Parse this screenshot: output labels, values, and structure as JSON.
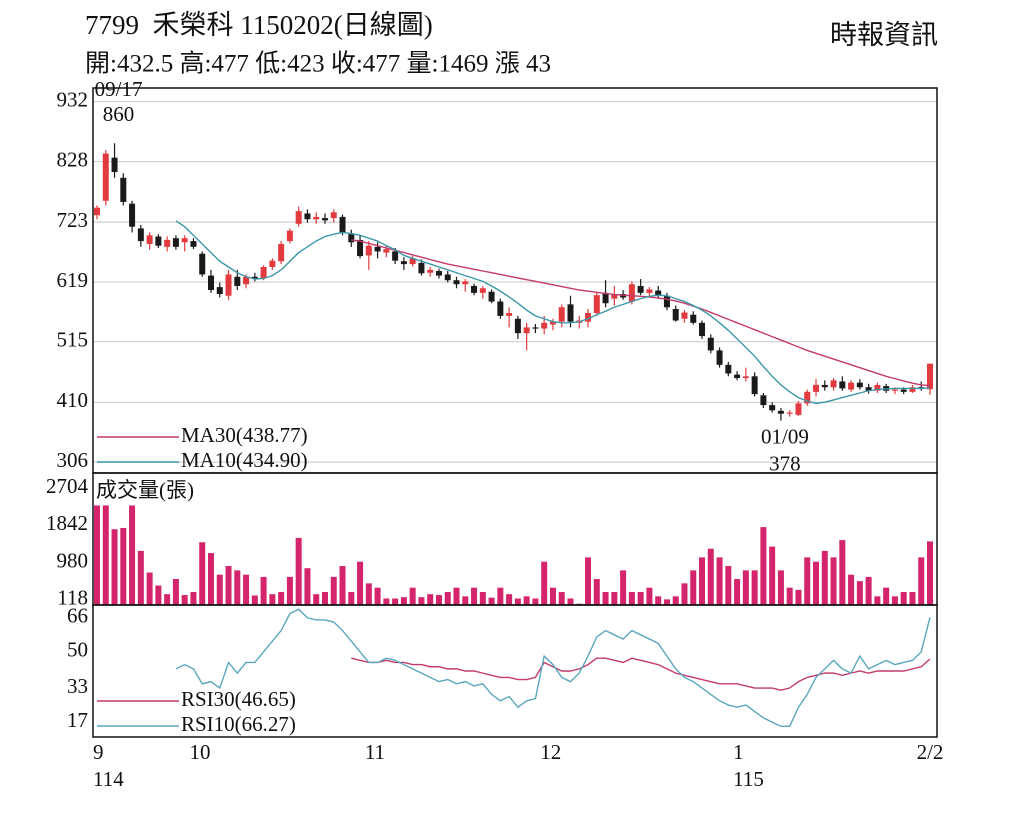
{
  "chart_data": [
    {
      "type": "candlestick",
      "title": "7799  禾榮科 1150202(日線圖)",
      "subtitle": "開:432.5 高:477 低:423 收:477 量:1469 漲 43",
      "source": "時報資訊",
      "open": [
        735,
        760,
        835,
        800,
        755,
        712,
        685,
        698,
        680,
        695,
        688,
        690,
        668,
        630,
        610,
        595,
        628,
        615,
        628,
        625,
        645,
        655,
        690,
        720,
        738,
        728,
        730,
        730,
        732,
        702,
        692,
        665,
        680,
        670,
        672,
        655,
        650,
        652,
        635,
        638,
        632,
        622,
        615,
        612,
        600,
        602,
        585,
        560,
        555,
        530,
        540,
        538,
        545,
        550,
        580,
        548,
        550,
        565,
        600,
        590,
        598,
        585,
        612,
        600,
        604,
        595,
        572,
        555,
        562,
        548,
        522,
        500,
        475,
        458,
        452,
        455,
        422,
        405,
        395,
        390,
        388,
        408,
        428,
        440,
        436,
        446,
        432,
        444,
        436,
        430,
        438,
        430,
        432,
        428,
        436,
        432.5
      ],
      "high": [
        752,
        848,
        860,
        808,
        760,
        718,
        705,
        702,
        698,
        700,
        700,
        695,
        672,
        640,
        618,
        640,
        640,
        632,
        635,
        648,
        660,
        690,
        712,
        750,
        745,
        740,
        738,
        745,
        736,
        710,
        700,
        690,
        688,
        682,
        678,
        662,
        664,
        658,
        645,
        642,
        638,
        628,
        624,
        616,
        612,
        606,
        590,
        575,
        560,
        548,
        546,
        560,
        555,
        580,
        595,
        560,
        572,
        600,
        622,
        612,
        605,
        620,
        624,
        610,
        612,
        600,
        578,
        570,
        568,
        552,
        528,
        505,
        480,
        464,
        470,
        462,
        426,
        410,
        400,
        396,
        412,
        432,
        450,
        448,
        452,
        455,
        448,
        450,
        442,
        444,
        442,
        436,
        436,
        440,
        446,
        477
      ],
      "low": [
        728,
        752,
        800,
        752,
        705,
        680,
        675,
        678,
        672,
        675,
        672,
        676,
        628,
        600,
        592,
        588,
        605,
        608,
        620,
        622,
        640,
        650,
        686,
        715,
        722,
        720,
        720,
        722,
        700,
        680,
        660,
        640,
        660,
        662,
        650,
        640,
        646,
        630,
        628,
        625,
        618,
        608,
        602,
        596,
        590,
        582,
        555,
        540,
        520,
        500,
        530,
        528,
        535,
        540,
        540,
        538,
        540,
        560,
        575,
        578,
        588,
        580,
        596,
        592,
        590,
        570,
        550,
        548,
        545,
        520,
        495,
        470,
        455,
        448,
        446,
        420,
        400,
        392,
        378,
        385,
        386,
        404,
        420,
        430,
        430,
        430,
        428,
        432,
        425,
        426,
        426,
        424,
        424,
        426,
        430,
        423
      ],
      "close": [
        748,
        842,
        810,
        758,
        715,
        690,
        700,
        682,
        692,
        680,
        695,
        680,
        632,
        605,
        598,
        632,
        612,
        628,
        624,
        645,
        656,
        685,
        708,
        742,
        728,
        732,
        726,
        740,
        705,
        688,
        664,
        682,
        672,
        676,
        656,
        650,
        660,
        634,
        640,
        630,
        622,
        615,
        620,
        600,
        608,
        585,
        560,
        565,
        530,
        540,
        538,
        548,
        550,
        575,
        550,
        552,
        565,
        596,
        582,
        598,
        592,
        615,
        600,
        606,
        595,
        575,
        552,
        566,
        548,
        525,
        500,
        475,
        460,
        452,
        455,
        424,
        405,
        396,
        390,
        392,
        408,
        428,
        440,
        436,
        448,
        434,
        444,
        436,
        430,
        440,
        430,
        432,
        428,
        436,
        434,
        477
      ],
      "up_color": "#e23a3f",
      "down_color": "#1a1a1a",
      "series": [
        {
          "name": "MA30(438.77)",
          "color": "#c43a6c",
          "values": [
            null,
            null,
            null,
            null,
            null,
            null,
            null,
            null,
            null,
            null,
            null,
            null,
            null,
            null,
            null,
            null,
            null,
            null,
            null,
            null,
            null,
            null,
            null,
            null,
            null,
            null,
            null,
            null,
            null,
            692,
            690,
            686,
            682,
            678,
            674,
            670,
            666,
            662,
            658,
            654,
            650,
            647,
            644,
            641,
            638,
            635,
            632,
            629,
            626,
            623,
            620,
            617,
            614,
            611,
            608,
            605,
            603,
            601,
            599,
            597,
            596,
            595,
            594,
            593,
            591,
            589,
            586,
            582,
            577,
            572,
            566,
            560,
            554,
            548,
            542,
            536,
            530,
            524,
            518,
            512,
            506,
            500,
            495,
            490,
            485,
            480,
            475,
            470,
            465,
            460,
            455,
            451,
            447,
            443,
            440,
            438.77
          ]
        },
        {
          "name": "MA10(434.90)",
          "color": "#3b97a8",
          "values": [
            null,
            null,
            null,
            null,
            null,
            null,
            null,
            null,
            null,
            725,
            715,
            700,
            685,
            670,
            655,
            645,
            635,
            628,
            624,
            625,
            630,
            640,
            655,
            670,
            680,
            690,
            698,
            702,
            705,
            703,
            700,
            695,
            690,
            682,
            675,
            665,
            660,
            655,
            650,
            645,
            640,
            635,
            630,
            625,
            620,
            612,
            603,
            593,
            582,
            570,
            560,
            555,
            550,
            548,
            548,
            550,
            555,
            562,
            568,
            575,
            580,
            585,
            590,
            594,
            596,
            595,
            590,
            585,
            578,
            570,
            560,
            548,
            535,
            520,
            505,
            490,
            472,
            455,
            440,
            428,
            418,
            412,
            408,
            410,
            414,
            418,
            422,
            426,
            430,
            432,
            433,
            434,
            434,
            434,
            434,
            434.9
          ]
        }
      ],
      "legend": "lower left",
      "annotations": [
        {
          "date": "09/17",
          "value": 860
        },
        {
          "date": "01/09",
          "value": 378
        }
      ],
      "ylim": [
        287,
        956
      ],
      "yticks": [
        306,
        410,
        515,
        619,
        723,
        828,
        932
      ],
      "grid": true
    },
    {
      "type": "bar",
      "title": "成交量(張)",
      "color": "#d4246c",
      "values": [
        2300,
        2300,
        1750,
        1780,
        2300,
        1250,
        750,
        450,
        250,
        600,
        230,
        300,
        1450,
        1200,
        700,
        900,
        800,
        700,
        220,
        650,
        250,
        300,
        650,
        1550,
        850,
        250,
        300,
        650,
        900,
        300,
        1000,
        500,
        400,
        150,
        150,
        180,
        400,
        180,
        250,
        230,
        300,
        400,
        200,
        400,
        300,
        170,
        400,
        250,
        150,
        200,
        150,
        1000,
        400,
        300,
        150,
        30,
        1100,
        600,
        300,
        300,
        800,
        300,
        300,
        400,
        200,
        130,
        200,
        500,
        800,
        1100,
        1300,
        1100,
        900,
        600,
        800,
        800,
        1800,
        1350,
        800,
        400,
        350,
        1100,
        1000,
        1250,
        1100,
        1500,
        700,
        550,
        650,
        200,
        400,
        200,
        300,
        300,
        1100,
        1469
      ],
      "ylim": [
        0,
        3050
      ],
      "yticks": [
        118,
        980,
        1842,
        2704
      ],
      "grid": false
    },
    {
      "type": "line",
      "series": [
        {
          "name": "RSI30(46.65)",
          "color": "#c43a6c",
          "values": [
            null,
            null,
            null,
            null,
            null,
            null,
            null,
            null,
            null,
            null,
            null,
            null,
            null,
            null,
            null,
            null,
            null,
            null,
            null,
            null,
            null,
            null,
            null,
            null,
            null,
            null,
            null,
            null,
            null,
            47,
            46,
            45,
            45,
            46,
            45,
            45,
            44,
            44,
            43,
            43,
            42,
            42,
            41,
            41,
            40,
            39,
            38,
            38,
            37,
            37,
            38,
            45,
            43,
            41,
            41,
            42,
            44,
            47,
            47,
            46,
            45,
            47,
            46,
            45,
            44,
            42,
            40,
            39,
            38,
            37,
            36,
            35,
            35,
            35,
            34,
            33,
            33,
            33,
            32,
            33,
            36,
            38,
            39,
            40,
            40,
            39,
            40,
            41,
            40,
            41,
            41,
            41,
            41,
            42,
            43,
            46.65
          ]
        },
        {
          "name": "RSI10(66.27)",
          "color": "#5aa7be",
          "values": [
            null,
            null,
            null,
            null,
            null,
            null,
            null,
            null,
            null,
            42,
            44,
            42,
            35,
            36,
            33,
            45,
            40,
            45,
            45,
            50,
            55,
            60,
            68,
            70,
            66,
            65,
            65,
            64,
            60,
            55,
            50,
            45,
            45,
            47,
            46,
            44,
            42,
            40,
            38,
            36,
            37,
            35,
            36,
            34,
            35,
            30,
            27,
            29,
            24,
            27,
            28,
            48,
            44,
            38,
            36,
            40,
            48,
            57,
            60,
            58,
            56,
            60,
            58,
            56,
            54,
            48,
            42,
            38,
            36,
            33,
            30,
            27,
            25,
            24,
            25,
            22,
            19,
            17,
            15,
            15,
            24,
            30,
            38,
            42,
            46,
            42,
            40,
            48,
            42,
            44,
            46,
            44,
            45,
            46,
            50,
            66.27
          ]
        }
      ],
      "legend": "lower left",
      "categories": [
        "9",
        null,
        null,
        null,
        null,
        null,
        null,
        null,
        null,
        null,
        null,
        "10",
        null,
        null,
        null,
        null,
        null,
        null,
        null,
        null,
        null,
        null,
        null,
        null,
        null,
        null,
        null,
        null,
        null,
        null,
        null,
        "11",
        null,
        null,
        null,
        null,
        null,
        null,
        null,
        null,
        null,
        null,
        null,
        null,
        null,
        null,
        null,
        null,
        null,
        null,
        null,
        "12",
        null,
        null,
        null,
        null,
        null,
        null,
        null,
        null,
        null,
        null,
        null,
        null,
        null,
        null,
        null,
        null,
        null,
        null,
        null,
        null,
        null,
        "1",
        null,
        null,
        null,
        null,
        null,
        null,
        null,
        null,
        null,
        null,
        null,
        null,
        null,
        null,
        null,
        null,
        null,
        null,
        null,
        null,
        null,
        "2/2"
      ],
      "years": [
        "114",
        null,
        null,
        null,
        null,
        null,
        null,
        null,
        null,
        null,
        null,
        null,
        null,
        null,
        null,
        null,
        null,
        null,
        null,
        null,
        null,
        null,
        null,
        null,
        null,
        null,
        null,
        null,
        null,
        null,
        null,
        null,
        null,
        null,
        null,
        null,
        null,
        null,
        null,
        null,
        null,
        null,
        null,
        null,
        null,
        null,
        null,
        null,
        null,
        null,
        null,
        null,
        null,
        null,
        null,
        null,
        null,
        null,
        null,
        null,
        null,
        null,
        null,
        null,
        null,
        null,
        null,
        null,
        null,
        null,
        null,
        null,
        null,
        "115",
        null,
        null,
        null,
        null,
        null,
        null,
        null,
        null,
        null,
        null,
        null,
        null,
        null,
        null,
        null,
        null,
        null,
        null,
        null,
        null,
        null,
        null
      ],
      "ylim": [
        10,
        72
      ],
      "yticks": [
        17,
        33,
        50,
        66
      ],
      "grid": false
    }
  ]
}
